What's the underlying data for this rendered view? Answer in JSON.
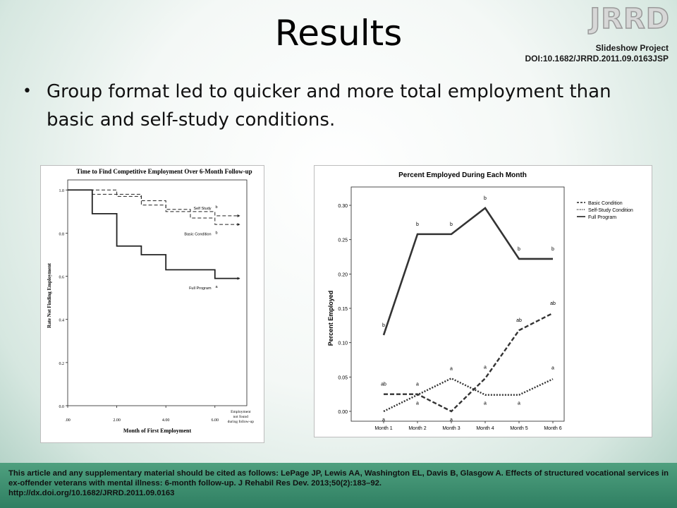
{
  "slide": {
    "title": "Results",
    "logo": "JRRD",
    "project": "Slideshow Project",
    "doi": "DOI:10.1682/JRRD.2011.09.0163JSP",
    "bullets": [
      "Group format led to quicker and more total employment than basic and self-study conditions."
    ],
    "citation": "This article and any supplementary material should be cited as follows: LePage JP, Lewis AA, Washington EL, Davis B, Glasgow A. Effects of structured vocational services in ex-offender veterans with mental illness: 6-month follow-up. J Rehabil Res Dev. 2013;50(2):183–92.",
    "citation_link": "http://dx.doi.org/10.1682/JRRD.2011.09.0163"
  },
  "chart_data": [
    {
      "type": "line",
      "title": "Time to Find Competitive Employment Over 6-Month Follow-up",
      "xlabel": "Month of First Employment",
      "ylabel": "Rate Not Finding Employment",
      "xticks": [
        ".00",
        "2.00",
        "4.00",
        "6.00"
      ],
      "extra_xtick": "Employment not found during follow-up",
      "yticks": [
        "0.0",
        "0.2",
        "0.4",
        "0.6",
        "0.8",
        "1.0"
      ],
      "xlim": [
        0,
        7.3
      ],
      "ylim": [
        0,
        1.0
      ],
      "step": true,
      "series": [
        {
          "name": "Self Study",
          "letter": "b",
          "style": "dashed",
          "x": [
            0,
            1,
            2,
            3,
            4,
            5,
            6,
            7
          ],
          "y": [
            1.0,
            1.0,
            0.98,
            0.93,
            0.91,
            0.9,
            0.88,
            0.88
          ]
        },
        {
          "name": "Basic Condition",
          "letter": "b",
          "style": "dashed",
          "x": [
            0,
            1,
            2,
            3,
            4,
            5,
            6,
            7
          ],
          "y": [
            1.0,
            0.98,
            0.97,
            0.95,
            0.9,
            0.87,
            0.84,
            0.84
          ]
        },
        {
          "name": "Full Program",
          "letter": "a",
          "style": "solid",
          "x": [
            0,
            1,
            2,
            3,
            4,
            5,
            6,
            7
          ],
          "y": [
            1.0,
            0.89,
            0.74,
            0.7,
            0.63,
            0.63,
            0.59,
            0.59
          ]
        }
      ]
    },
    {
      "type": "line",
      "title": "Percent Employed During Each Month",
      "xlabel": "",
      "ylabel": "Percent Employed",
      "categories": [
        "Month 1",
        "Month 2",
        "Month 3",
        "Month 4",
        "Month 5",
        "Month 6"
      ],
      "yticks": [
        "0.00",
        "0.05",
        "0.10",
        "0.15",
        "0.20",
        "0.25",
        "0.30"
      ],
      "ylim": [
        0,
        0.3
      ],
      "legend": "top-right",
      "series": [
        {
          "name": "Basic Condition",
          "style": "dashed",
          "values": [
            0.025,
            0.025,
            0.0,
            0.048,
            0.118,
            0.143
          ],
          "labels": [
            "ab",
            "a",
            "a",
            "a",
            "ab",
            "ab"
          ]
        },
        {
          "name": "Self-Study Condition",
          "style": "dotted",
          "values": [
            0.0,
            0.024,
            0.048,
            0.024,
            0.024,
            0.047
          ],
          "labels": [
            "a",
            "a",
            "a",
            "a",
            "a",
            "a"
          ]
        },
        {
          "name": "Full Program",
          "style": "solid",
          "values": [
            0.111,
            0.258,
            0.258,
            0.296,
            0.222,
            0.222
          ],
          "labels": [
            "b",
            "b",
            "b",
            "b",
            "b",
            "b"
          ]
        }
      ]
    }
  ]
}
